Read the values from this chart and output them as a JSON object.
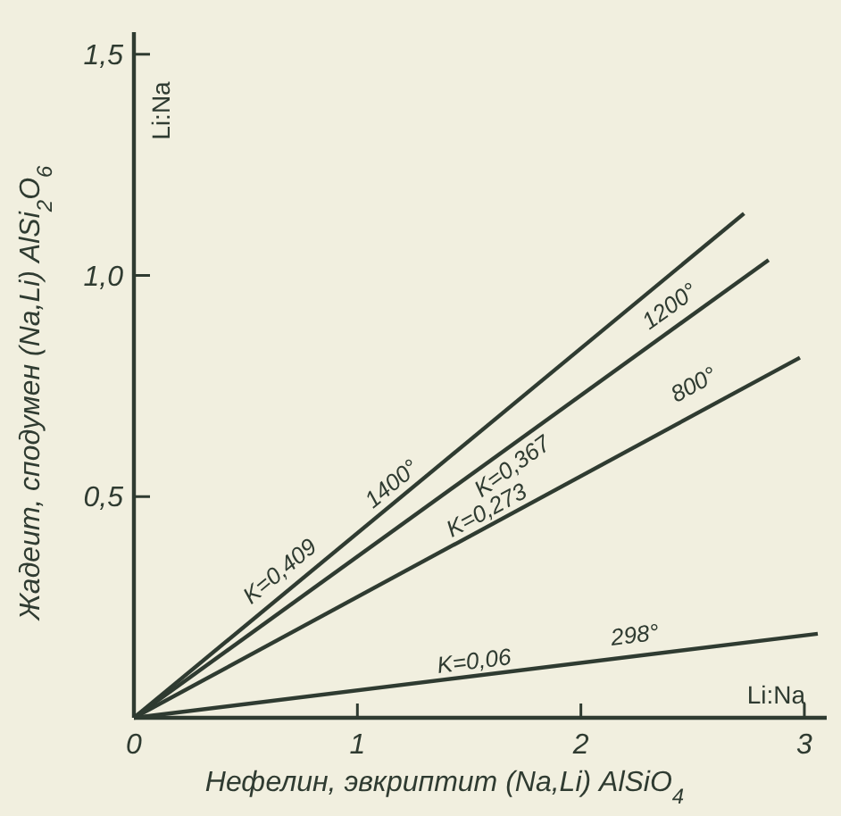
{
  "chart_data": {
    "type": "line",
    "xlabel": "Нефелин, эвкриптит (Na,Li) AlSiO$_{4}$",
    "ylabel": "Жадеит, сподумен (Na,Li) AlSi$_{2}$O$_{6}$",
    "xlim": [
      0,
      3.1
    ],
    "ylim": [
      0,
      1.55
    ],
    "xticks": [
      {
        "value": 0,
        "label": "0"
      },
      1,
      2,
      3
    ],
    "yticks": [
      {
        "value": 0.5,
        "label": "0,5"
      },
      {
        "value": 1,
        "label": "1,0"
      },
      {
        "value": 1.5,
        "label": "1,5"
      }
    ],
    "grid": false,
    "series": [
      {
        "name": "K=0,409",
        "color": "#2f3b31",
        "x": [
          0,
          2.73
        ],
        "values": [
          0,
          1.14
        ]
      },
      {
        "name": "K=0,367",
        "color": "#2f3b31",
        "x": [
          0,
          2.84
        ],
        "values": [
          0,
          1.035
        ]
      },
      {
        "name": "K=0,273",
        "color": "#2f3b31",
        "x": [
          0,
          2.98
        ],
        "values": [
          0,
          0.814
        ]
      },
      {
        "name": "K=0,06",
        "color": "#2f3b31",
        "x": [
          0,
          3.06
        ],
        "values": [
          0,
          0.19
        ]
      }
    ],
    "annotations": [
      "Li:Na",
      "Li:Na",
      {
        "text": "1400°",
        "x": 1.2,
        "y": 0.5
      },
      {
        "text": "1200°",
        "x": 2.44,
        "y": 0.9
      },
      {
        "text": "800°",
        "x": 2.54,
        "y": 0.72
      },
      {
        "text": "298°",
        "x": 2.25,
        "y": 0.15
      }
    ]
  }
}
